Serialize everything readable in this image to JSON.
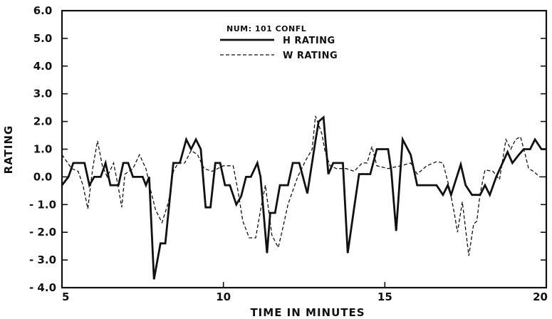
{
  "chart_data": {
    "type": "line",
    "xlabel": "TIME IN MINUTES",
    "ylabel": "RATING",
    "xlim": [
      5,
      20
    ],
    "ylim": [
      -4,
      6
    ],
    "xticks": [
      5,
      10,
      15,
      20
    ],
    "xtick_labels": [
      "5",
      "10",
      "15",
      "20"
    ],
    "yticks": [
      -4,
      -3,
      -2,
      -1,
      0,
      1,
      2,
      3,
      4,
      5,
      6
    ],
    "ytick_labels": [
      "- 4.0",
      "- 3.0",
      "- 2.0",
      "- 1.0",
      "0.0",
      "1.0",
      "2.0",
      "3.0",
      "4.0",
      "5.0",
      "6.0"
    ],
    "grid": false,
    "legend": {
      "position": "top-center",
      "heading": "NUM: 101   CONFL"
    },
    "series": [
      {
        "name": "H RATING",
        "style": "solid",
        "color": "#111111",
        "points": [
          [
            5.0,
            -0.3
          ],
          [
            5.2,
            0.0
          ],
          [
            5.35,
            0.5
          ],
          [
            5.7,
            0.5
          ],
          [
            5.85,
            -0.3
          ],
          [
            6.0,
            0.0
          ],
          [
            6.2,
            0.0
          ],
          [
            6.35,
            0.5
          ],
          [
            6.5,
            -0.3
          ],
          [
            6.75,
            -0.3
          ],
          [
            6.9,
            0.5
          ],
          [
            7.05,
            0.5
          ],
          [
            7.2,
            0.0
          ],
          [
            7.5,
            0.0
          ],
          [
            7.6,
            -0.3
          ],
          [
            7.7,
            0.0
          ],
          [
            7.85,
            -3.7
          ],
          [
            8.05,
            -2.4
          ],
          [
            8.2,
            -2.4
          ],
          [
            8.45,
            0.5
          ],
          [
            8.65,
            0.5
          ],
          [
            8.85,
            1.35
          ],
          [
            9.0,
            1.0
          ],
          [
            9.15,
            1.35
          ],
          [
            9.3,
            1.0
          ],
          [
            9.45,
            -1.1
          ],
          [
            9.6,
            -1.1
          ],
          [
            9.75,
            0.5
          ],
          [
            9.9,
            0.5
          ],
          [
            10.05,
            -0.3
          ],
          [
            10.2,
            -0.3
          ],
          [
            10.4,
            -1.0
          ],
          [
            10.55,
            -0.7
          ],
          [
            10.7,
            0.0
          ],
          [
            10.85,
            0.0
          ],
          [
            11.05,
            0.5
          ],
          [
            11.15,
            0.0
          ],
          [
            11.35,
            -2.75
          ],
          [
            11.45,
            -1.3
          ],
          [
            11.6,
            -1.3
          ],
          [
            11.75,
            -0.3
          ],
          [
            12.0,
            -0.3
          ],
          [
            12.15,
            0.5
          ],
          [
            12.35,
            0.5
          ],
          [
            12.6,
            -0.6
          ],
          [
            12.85,
            1.3
          ],
          [
            12.95,
            2.0
          ],
          [
            13.1,
            2.15
          ],
          [
            13.25,
            0.1
          ],
          [
            13.4,
            0.5
          ],
          [
            13.7,
            0.5
          ],
          [
            13.85,
            -2.75
          ],
          [
            14.05,
            -1.1
          ],
          [
            14.2,
            0.1
          ],
          [
            14.55,
            0.1
          ],
          [
            14.75,
            1.0
          ],
          [
            15.1,
            1.0
          ],
          [
            15.2,
            0.2
          ],
          [
            15.35,
            -1.95
          ],
          [
            15.55,
            1.35
          ],
          [
            15.8,
            0.8
          ],
          [
            16.0,
            -0.3
          ],
          [
            16.6,
            -0.3
          ],
          [
            16.8,
            -0.65
          ],
          [
            16.95,
            -0.3
          ],
          [
            17.05,
            -0.65
          ],
          [
            17.35,
            0.45
          ],
          [
            17.5,
            -0.3
          ],
          [
            17.7,
            -0.65
          ],
          [
            17.95,
            -0.65
          ],
          [
            18.1,
            -0.3
          ],
          [
            18.25,
            -0.65
          ],
          [
            18.45,
            0.0
          ],
          [
            18.8,
            0.9
          ],
          [
            18.95,
            0.5
          ],
          [
            19.15,
            0.8
          ],
          [
            19.3,
            1.0
          ],
          [
            19.5,
            1.0
          ],
          [
            19.65,
            1.35
          ],
          [
            19.85,
            1.0
          ],
          [
            20.0,
            1.0
          ]
        ]
      },
      {
        "name": "W RATING",
        "style": "dashed",
        "color": "#111111",
        "points": [
          [
            5.0,
            0.8
          ],
          [
            5.15,
            0.55
          ],
          [
            5.3,
            0.3
          ],
          [
            5.5,
            0.2
          ],
          [
            5.65,
            -0.3
          ],
          [
            5.8,
            -1.15
          ],
          [
            5.95,
            0.3
          ],
          [
            6.1,
            1.3
          ],
          [
            6.25,
            0.4
          ],
          [
            6.4,
            0.0
          ],
          [
            6.6,
            0.5
          ],
          [
            6.75,
            -0.4
          ],
          [
            6.85,
            -1.1
          ],
          [
            6.95,
            0.1
          ],
          [
            7.2,
            0.3
          ],
          [
            7.4,
            0.8
          ],
          [
            7.6,
            0.3
          ],
          [
            7.75,
            -0.5
          ],
          [
            7.9,
            -1.2
          ],
          [
            8.1,
            -1.65
          ],
          [
            8.3,
            -0.9
          ],
          [
            8.45,
            0.2
          ],
          [
            8.6,
            0.5
          ],
          [
            8.8,
            0.5
          ],
          [
            9.0,
            0.95
          ],
          [
            9.2,
            0.8
          ],
          [
            9.4,
            0.3
          ],
          [
            9.65,
            0.2
          ],
          [
            10.0,
            0.4
          ],
          [
            10.3,
            0.4
          ],
          [
            10.45,
            -0.5
          ],
          [
            10.6,
            -1.6
          ],
          [
            10.8,
            -2.2
          ],
          [
            11.0,
            -2.2
          ],
          [
            11.15,
            -1.2
          ],
          [
            11.3,
            -0.3
          ],
          [
            11.5,
            -2.1
          ],
          [
            11.7,
            -2.55
          ],
          [
            11.85,
            -1.8
          ],
          [
            12.0,
            -1.0
          ],
          [
            12.3,
            0.0
          ],
          [
            12.55,
            0.6
          ],
          [
            12.75,
            1.0
          ],
          [
            12.85,
            2.2
          ],
          [
            13.05,
            1.55
          ],
          [
            13.15,
            0.9
          ],
          [
            13.3,
            0.4
          ],
          [
            13.5,
            0.3
          ],
          [
            13.8,
            0.3
          ],
          [
            14.05,
            0.2
          ],
          [
            14.3,
            0.5
          ],
          [
            14.45,
            0.5
          ],
          [
            14.6,
            1.1
          ],
          [
            14.75,
            0.4
          ],
          [
            15.1,
            0.3
          ],
          [
            15.5,
            0.4
          ],
          [
            15.8,
            0.5
          ],
          [
            16.0,
            0.1
          ],
          [
            16.3,
            0.4
          ],
          [
            16.6,
            0.55
          ],
          [
            16.8,
            0.5
          ],
          [
            17.0,
            -0.4
          ],
          [
            17.15,
            -1.3
          ],
          [
            17.25,
            -2.0
          ],
          [
            17.4,
            -0.9
          ],
          [
            17.6,
            -2.85
          ],
          [
            17.75,
            -1.7
          ],
          [
            17.85,
            -1.6
          ],
          [
            17.95,
            -0.6
          ],
          [
            18.1,
            0.25
          ],
          [
            18.35,
            0.2
          ],
          [
            18.55,
            -0.1
          ],
          [
            18.75,
            1.35
          ],
          [
            18.9,
            1.0
          ],
          [
            19.05,
            1.35
          ],
          [
            19.2,
            1.45
          ],
          [
            19.35,
            0.8
          ],
          [
            19.45,
            0.3
          ],
          [
            19.6,
            0.2
          ],
          [
            19.8,
            0.0
          ],
          [
            20.0,
            0.0
          ]
        ]
      }
    ]
  }
}
